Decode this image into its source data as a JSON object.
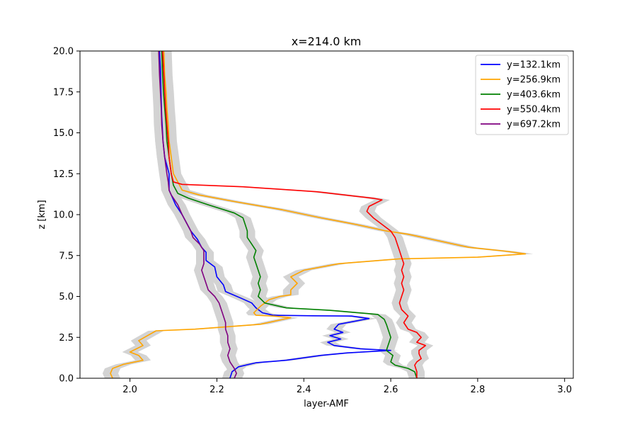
{
  "chart_data": {
    "type": "line",
    "title": "x=214.0 km",
    "xlabel": "layer-AMF",
    "ylabel": "z [km]",
    "xlim": [
      1.885,
      3.02
    ],
    "ylim": [
      0,
      20
    ],
    "xticks": [
      "2.0",
      "2.2",
      "2.4",
      "2.6",
      "2.8",
      "3.0"
    ],
    "xtick_values": [
      2.0,
      2.2,
      2.4,
      2.6,
      2.8,
      3.0
    ],
    "yticks": [
      "0.0",
      "2.5",
      "5.0",
      "7.5",
      "10.0",
      "12.5",
      "15.0",
      "17.5",
      "20.0"
    ],
    "ytick_values": [
      0,
      2.5,
      5.0,
      7.5,
      10.0,
      12.5,
      15.0,
      17.5,
      20.0
    ],
    "grid": false,
    "legend_position": "top-right",
    "uncertainty_band_color": "#d3d3d3",
    "series": [
      {
        "name": "y=132.1km",
        "color": "#0000ff",
        "points": [
          [
            2.23,
            0.0
          ],
          [
            2.235,
            0.4
          ],
          [
            2.25,
            0.7
          ],
          [
            2.29,
            0.95
          ],
          [
            2.36,
            1.1
          ],
          [
            2.44,
            1.4
          ],
          [
            2.5,
            1.55
          ],
          [
            2.6,
            1.7
          ],
          [
            2.53,
            1.8
          ],
          [
            2.47,
            2.0
          ],
          [
            2.455,
            2.2
          ],
          [
            2.485,
            2.4
          ],
          [
            2.46,
            2.6
          ],
          [
            2.49,
            2.8
          ],
          [
            2.47,
            3.0
          ],
          [
            2.48,
            3.3
          ],
          [
            2.55,
            3.65
          ],
          [
            2.51,
            3.8
          ],
          [
            2.42,
            3.82
          ],
          [
            2.33,
            3.85
          ],
          [
            2.305,
            4.0
          ],
          [
            2.29,
            4.3
          ],
          [
            2.28,
            4.6
          ],
          [
            2.255,
            4.9
          ],
          [
            2.22,
            5.3
          ],
          [
            2.215,
            5.7
          ],
          [
            2.2,
            6.2
          ],
          [
            2.195,
            6.8
          ],
          [
            2.175,
            7.2
          ],
          [
            2.175,
            7.7
          ],
          [
            2.165,
            8.0
          ],
          [
            2.155,
            8.5
          ],
          [
            2.14,
            9.0
          ],
          [
            2.13,
            9.5
          ],
          [
            2.12,
            10.0
          ],
          [
            2.105,
            10.6
          ],
          [
            2.095,
            11.2
          ],
          [
            2.09,
            11.5
          ],
          [
            2.09,
            12.0
          ],
          [
            2.09,
            12.5
          ],
          [
            2.085,
            13.0
          ],
          [
            2.08,
            13.5
          ],
          [
            2.078,
            14.0
          ],
          [
            2.076,
            14.5
          ],
          [
            2.075,
            15.0
          ],
          [
            2.073,
            16.0
          ],
          [
            2.072,
            17.0
          ],
          [
            2.071,
            18.0
          ],
          [
            2.07,
            19.0
          ],
          [
            2.068,
            20.0
          ]
        ]
      },
      {
        "name": "y=256.9km",
        "color": "#ffa500",
        "points": [
          [
            1.96,
            0.0
          ],
          [
            1.955,
            0.3
          ],
          [
            1.96,
            0.6
          ],
          [
            1.985,
            0.85
          ],
          [
            2.03,
            1.1
          ],
          [
            2.02,
            1.4
          ],
          [
            2.0,
            1.6
          ],
          [
            2.03,
            2.0
          ],
          [
            2.02,
            2.3
          ],
          [
            2.04,
            2.6
          ],
          [
            2.06,
            2.9
          ],
          [
            2.15,
            3.0
          ],
          [
            2.3,
            3.3
          ],
          [
            2.37,
            3.7
          ],
          [
            2.33,
            3.8
          ],
          [
            2.29,
            3.85
          ],
          [
            2.285,
            4.0
          ],
          [
            2.3,
            4.4
          ],
          [
            2.32,
            4.8
          ],
          [
            2.345,
            5.0
          ],
          [
            2.37,
            5.1
          ],
          [
            2.37,
            5.4
          ],
          [
            2.385,
            5.8
          ],
          [
            2.37,
            6.2
          ],
          [
            2.4,
            6.6
          ],
          [
            2.48,
            7.0
          ],
          [
            2.62,
            7.3
          ],
          [
            2.8,
            7.4
          ],
          [
            2.91,
            7.6
          ],
          [
            2.87,
            7.75
          ],
          [
            2.78,
            8.0
          ],
          [
            2.64,
            8.8
          ],
          [
            2.59,
            9.0
          ],
          [
            2.52,
            9.4
          ],
          [
            2.48,
            9.6
          ],
          [
            2.44,
            9.8
          ],
          [
            2.35,
            10.3
          ],
          [
            2.24,
            10.8
          ],
          [
            2.16,
            11.2
          ],
          [
            2.12,
            11.5
          ],
          [
            2.11,
            12.0
          ],
          [
            2.1,
            12.5
          ],
          [
            2.095,
            13.5
          ],
          [
            2.09,
            14.5
          ],
          [
            2.088,
            15.5
          ],
          [
            2.085,
            16.5
          ],
          [
            2.083,
            17.5
          ],
          [
            2.08,
            18.5
          ],
          [
            2.078,
            20.0
          ]
        ]
      },
      {
        "name": "y=403.6km",
        "color": "#008000",
        "points": [
          [
            2.66,
            0.0
          ],
          [
            2.655,
            0.4
          ],
          [
            2.64,
            0.6
          ],
          [
            2.61,
            0.8
          ],
          [
            2.6,
            1.0
          ],
          [
            2.605,
            1.4
          ],
          [
            2.59,
            1.7
          ],
          [
            2.595,
            2.1
          ],
          [
            2.6,
            2.5
          ],
          [
            2.595,
            2.9
          ],
          [
            2.59,
            3.3
          ],
          [
            2.585,
            3.6
          ],
          [
            2.57,
            3.9
          ],
          [
            2.46,
            4.15
          ],
          [
            2.36,
            4.3
          ],
          [
            2.31,
            4.6
          ],
          [
            2.295,
            5.0
          ],
          [
            2.3,
            5.4
          ],
          [
            2.295,
            5.8
          ],
          [
            2.3,
            6.2
          ],
          [
            2.295,
            6.6
          ],
          [
            2.29,
            7.0
          ],
          [
            2.285,
            7.4
          ],
          [
            2.29,
            7.8
          ],
          [
            2.28,
            8.2
          ],
          [
            2.27,
            8.6
          ],
          [
            2.27,
            9.0
          ],
          [
            2.265,
            9.4
          ],
          [
            2.26,
            9.8
          ],
          [
            2.24,
            10.1
          ],
          [
            2.18,
            10.6
          ],
          [
            2.135,
            11.0
          ],
          [
            2.11,
            11.3
          ],
          [
            2.1,
            11.8
          ],
          [
            2.095,
            12.5
          ],
          [
            2.09,
            13.5
          ],
          [
            2.085,
            14.5
          ],
          [
            2.083,
            15.5
          ],
          [
            2.08,
            16.5
          ],
          [
            2.077,
            17.5
          ],
          [
            2.075,
            18.5
          ],
          [
            2.073,
            20.0
          ]
        ]
      },
      {
        "name": "y=550.4km",
        "color": "#ff0000",
        "points": [
          [
            2.66,
            0.0
          ],
          [
            2.66,
            0.4
          ],
          [
            2.655,
            0.8
          ],
          [
            2.66,
            1.0
          ],
          [
            2.67,
            1.2
          ],
          [
            2.665,
            1.5
          ],
          [
            2.665,
            1.7
          ],
          [
            2.68,
            2.0
          ],
          [
            2.66,
            2.2
          ],
          [
            2.67,
            2.5
          ],
          [
            2.66,
            2.8
          ],
          [
            2.64,
            3.0
          ],
          [
            2.63,
            3.4
          ],
          [
            2.64,
            3.8
          ],
          [
            2.625,
            4.2
          ],
          [
            2.62,
            4.6
          ],
          [
            2.625,
            5.0
          ],
          [
            2.63,
            5.4
          ],
          [
            2.625,
            5.8
          ],
          [
            2.63,
            6.2
          ],
          [
            2.625,
            6.6
          ],
          [
            2.63,
            7.0
          ],
          [
            2.625,
            7.4
          ],
          [
            2.62,
            7.8
          ],
          [
            2.615,
            8.2
          ],
          [
            2.61,
            8.6
          ],
          [
            2.6,
            9.0
          ],
          [
            2.58,
            9.4
          ],
          [
            2.56,
            9.8
          ],
          [
            2.545,
            10.2
          ],
          [
            2.55,
            10.5
          ],
          [
            2.58,
            10.9
          ],
          [
            2.56,
            11.0
          ],
          [
            2.43,
            11.4
          ],
          [
            2.26,
            11.7
          ],
          [
            2.12,
            11.85
          ],
          [
            2.1,
            12.0
          ],
          [
            2.095,
            12.5
          ],
          [
            2.09,
            13.5
          ],
          [
            2.088,
            14.5
          ],
          [
            2.085,
            15.5
          ],
          [
            2.082,
            16.5
          ],
          [
            2.08,
            17.5
          ],
          [
            2.078,
            18.5
          ],
          [
            2.075,
            20.0
          ]
        ]
      },
      {
        "name": "y=697.2km",
        "color": "#800080",
        "points": [
          [
            2.24,
            0.0
          ],
          [
            2.245,
            0.3
          ],
          [
            2.24,
            0.6
          ],
          [
            2.23,
            1.0
          ],
          [
            2.225,
            1.4
          ],
          [
            2.23,
            1.8
          ],
          [
            2.225,
            2.2
          ],
          [
            2.225,
            2.6
          ],
          [
            2.22,
            3.0
          ],
          [
            2.22,
            3.4
          ],
          [
            2.215,
            3.8
          ],
          [
            2.21,
            4.2
          ],
          [
            2.205,
            4.6
          ],
          [
            2.195,
            5.0
          ],
          [
            2.18,
            5.4
          ],
          [
            2.175,
            5.8
          ],
          [
            2.17,
            6.2
          ],
          [
            2.165,
            6.6
          ],
          [
            2.17,
            7.0
          ],
          [
            2.17,
            7.4
          ],
          [
            2.17,
            7.8
          ],
          [
            2.16,
            8.2
          ],
          [
            2.145,
            8.6
          ],
          [
            2.14,
            9.0
          ],
          [
            2.13,
            9.5
          ],
          [
            2.12,
            10.0
          ],
          [
            2.11,
            10.6
          ],
          [
            2.095,
            11.2
          ],
          [
            2.09,
            11.5
          ],
          [
            2.088,
            12.0
          ],
          [
            2.085,
            12.5
          ],
          [
            2.08,
            13.5
          ],
          [
            2.076,
            14.5
          ],
          [
            2.073,
            15.5
          ],
          [
            2.072,
            16.5
          ],
          [
            2.07,
            17.5
          ],
          [
            2.068,
            18.5
          ],
          [
            2.066,
            20.0
          ]
        ]
      }
    ]
  }
}
